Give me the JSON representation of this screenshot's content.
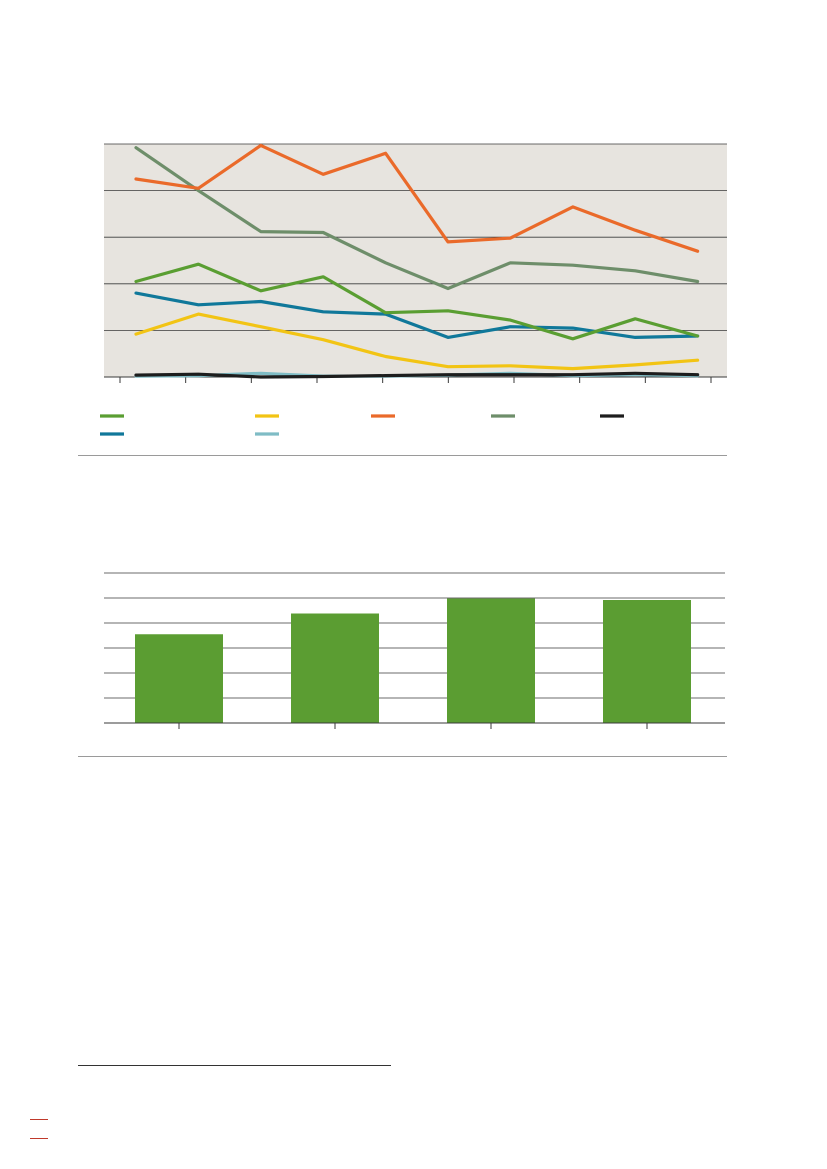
{
  "chart_data": [
    {
      "type": "line",
      "background": "#e7e4df",
      "grid": true,
      "gridlines": 5,
      "ylim": [
        0,
        5
      ],
      "point_count": 10,
      "legend_placement": "bottom",
      "series": [
        {
          "key": "green",
          "color": "#5a9e32",
          "values": [
            2.05,
            2.42,
            1.85,
            2.15,
            1.38,
            1.42,
            1.22,
            0.82,
            1.25,
            0.88
          ]
        },
        {
          "key": "yellow",
          "color": "#f2c414",
          "values": [
            0.92,
            1.35,
            1.08,
            0.8,
            0.44,
            0.22,
            0.24,
            0.18,
            0.26,
            0.36
          ]
        },
        {
          "key": "orange",
          "color": "#ea6a2a",
          "values": [
            4.25,
            4.05,
            4.97,
            4.35,
            4.8,
            2.9,
            2.98,
            3.65,
            3.15,
            2.7
          ]
        },
        {
          "key": "grey-green",
          "color": "#6e8e6a",
          "values": [
            4.92,
            4.0,
            3.12,
            3.1,
            2.45,
            1.9,
            2.45,
            2.4,
            2.28,
            2.05
          ]
        },
        {
          "key": "black",
          "color": "#1d1d1d",
          "values": [
            0.04,
            0.06,
            0.0,
            0.01,
            0.03,
            0.05,
            0.05,
            0.05,
            0.08,
            0.05
          ]
        },
        {
          "key": "blue",
          "color": "#10789a",
          "values": [
            1.8,
            1.55,
            1.62,
            1.4,
            1.35,
            0.85,
            1.08,
            1.05,
            0.85,
            0.88
          ]
        },
        {
          "key": "light-blue",
          "color": "#7fbcc5",
          "values": [
            0.02,
            0.03,
            0.08,
            0.02,
            0.02,
            0.04,
            0.08,
            0.03,
            0.05,
            0.03
          ]
        }
      ]
    },
    {
      "type": "bar",
      "background": "#ffffff",
      "grid": true,
      "gridlines": 6,
      "ylim": [
        0,
        6
      ],
      "color": "#5b9d32",
      "values": [
        3.55,
        4.38,
        4.98,
        4.92
      ]
    }
  ]
}
